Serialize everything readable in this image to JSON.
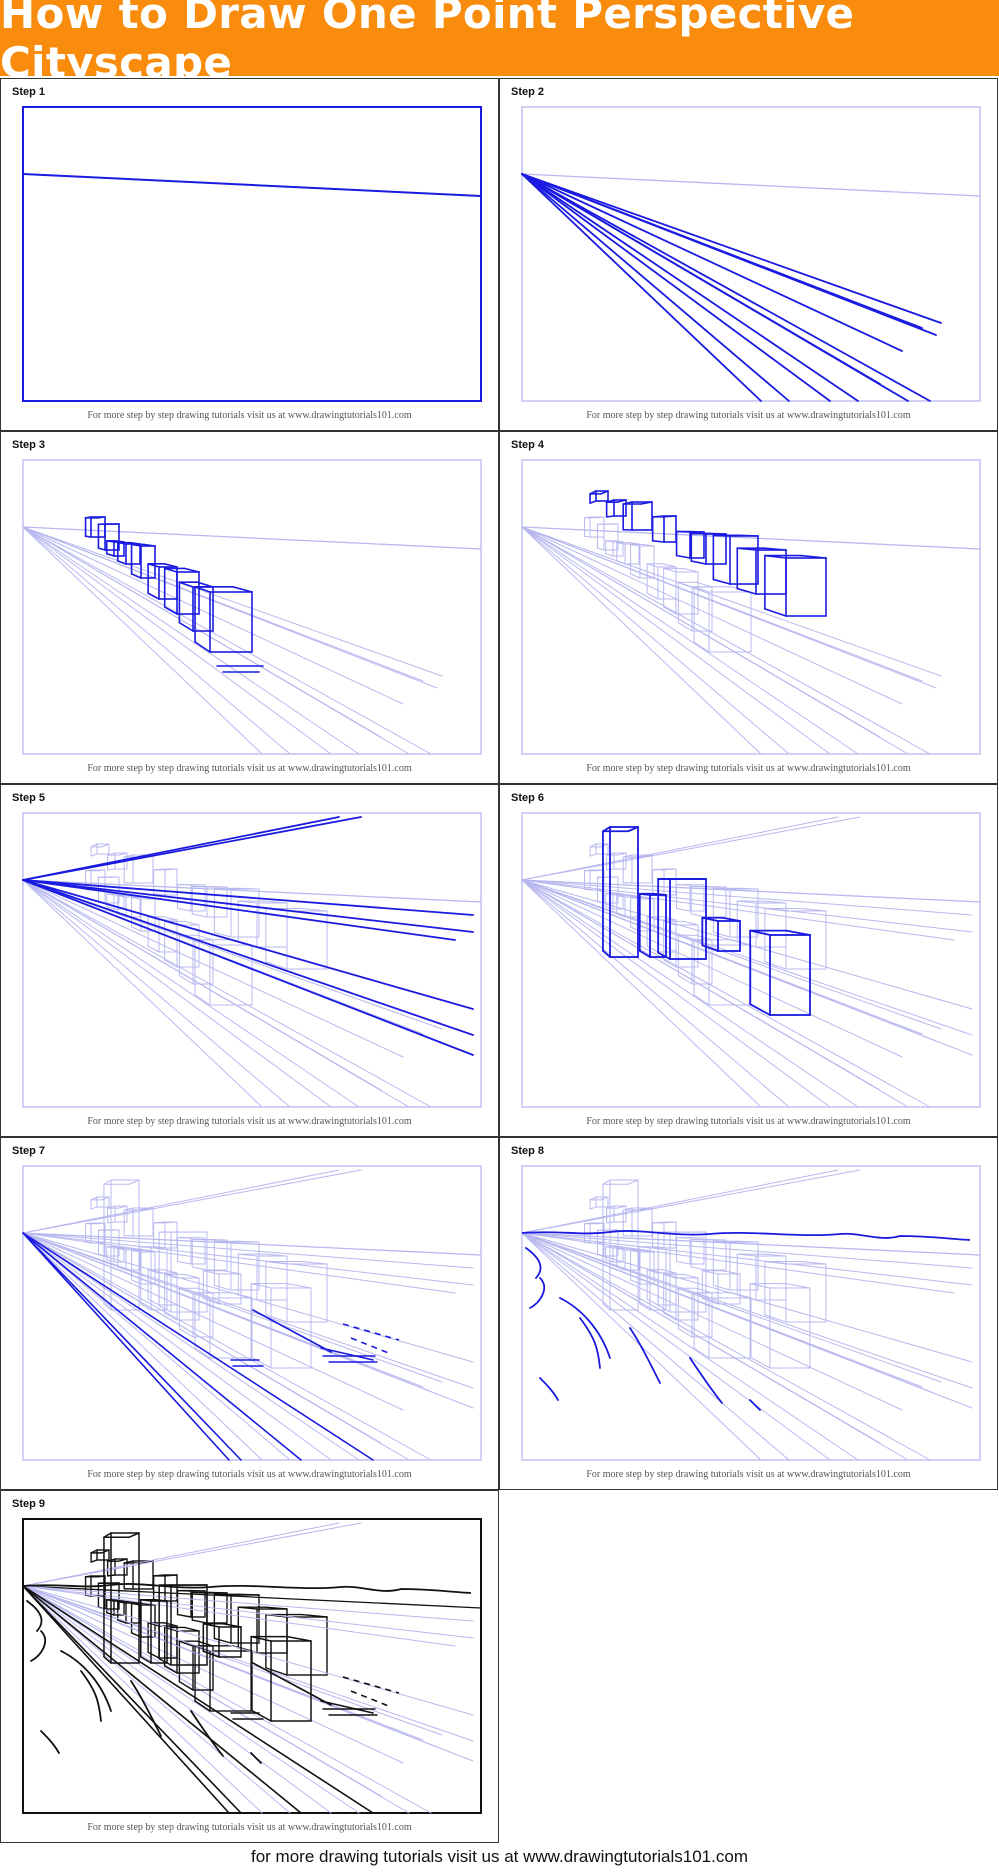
{
  "title": "How to Draw One Point Perspective Cityscape",
  "steps": [
    {
      "label": "Step 1"
    },
    {
      "label": "Step 2"
    },
    {
      "label": "Step 3"
    },
    {
      "label": "Step 4"
    },
    {
      "label": "Step 5"
    },
    {
      "label": "Step 6"
    },
    {
      "label": "Step 7"
    },
    {
      "label": "Step 8"
    },
    {
      "label": "Step 9"
    }
  ],
  "panel_credit": "For more step by step drawing tutorials visit us at www.drawingtutorials101.com",
  "footer": "for more drawing tutorials visit us at www.drawingtutorials101.com",
  "colors": {
    "banner": "#f98c0c",
    "new_line": "#1a1ae0",
    "guide_line": "#b8b8f0",
    "final_line": "#111111"
  }
}
